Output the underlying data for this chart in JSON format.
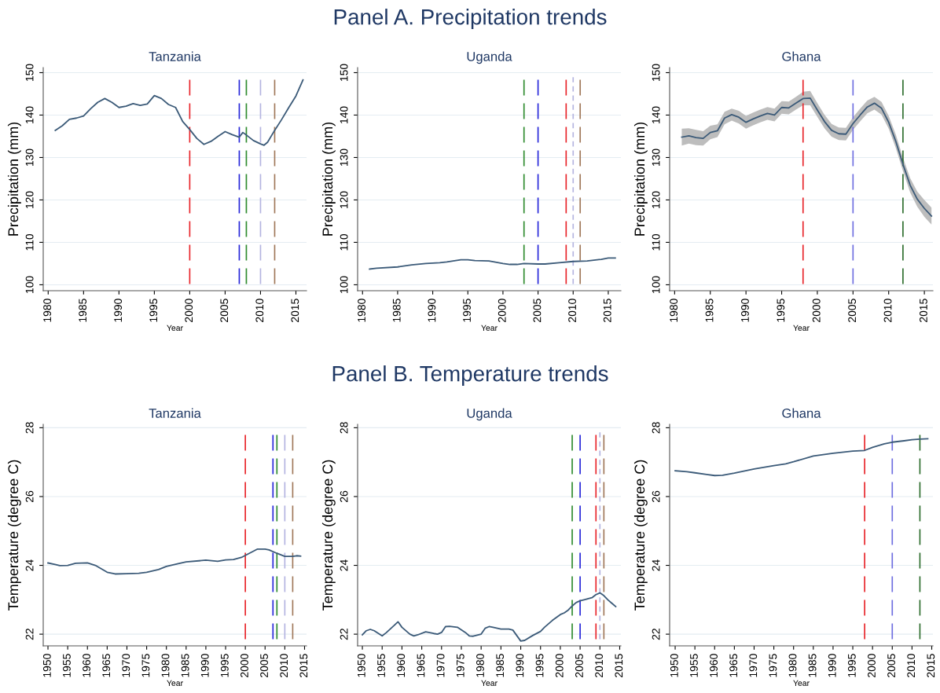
{
  "chart_data": [
    {
      "type": "line",
      "title": "Tanzania",
      "annotations": [
        "Panel A. Precipitation trends"
      ],
      "xlabel": "Year",
      "ylabel": "Precipitation (mm)",
      "xlim": [
        1979.3,
        2016.5
      ],
      "xticks": [
        1980,
        1985,
        1990,
        1995,
        2000,
        2005,
        2010,
        2015
      ],
      "ylim": [
        98.6,
        151.2
      ],
      "yticks": [
        100,
        110,
        120,
        130,
        140,
        150
      ],
      "grid": "y",
      "legend": false,
      "marker": "none",
      "line_style": "solid",
      "series": [
        {
          "color": "#3b5a78",
          "x": [
            1981,
            1982,
            1983,
            1984,
            1985,
            1986,
            1987,
            1988,
            1989,
            1990,
            1991,
            1992,
            1993,
            1994,
            1995,
            1996,
            1997,
            1998,
            1999,
            2000,
            2001,
            2002,
            2003,
            2004,
            2005,
            2006,
            2007,
            2007.5,
            2008,
            2009,
            2010,
            2010.5,
            2011,
            2012,
            2013,
            2014,
            2015,
            2016
          ],
          "values": [
            136.4,
            137.5,
            139,
            139.3,
            139.8,
            141.5,
            143,
            143.9,
            143,
            141.8,
            142.1,
            142.7,
            142.3,
            142.6,
            144.6,
            143.9,
            142.5,
            141.8,
            138.5,
            136.6,
            134.5,
            133.1,
            133.8,
            135,
            136.1,
            135.4,
            134.8,
            135.9,
            135.3,
            134,
            133.2,
            132.9,
            133.6,
            136.4,
            139,
            141.8,
            144.5,
            148.3
          ]
        }
      ],
      "ref_lines": [
        {
          "axis": "x",
          "value": 2000,
          "color": "#e8242a",
          "line_style": "dashed"
        },
        {
          "axis": "x",
          "value": 2007,
          "color": "#2626d9",
          "line_style": "dashed"
        },
        {
          "axis": "x",
          "value": 2008,
          "color": "#2e8b2e",
          "line_style": "dashed"
        },
        {
          "axis": "x",
          "value": 2010,
          "color": "#b4b4e0",
          "line_style": "dashed"
        },
        {
          "axis": "x",
          "value": 2012,
          "color": "#a0785a",
          "line_style": "dashed"
        }
      ]
    },
    {
      "type": "line",
      "title": "Uganda",
      "xlabel": "Year",
      "ylabel": "Precipitation (mm)",
      "xlim": [
        1979.3,
        2016.8
      ],
      "xticks": [
        1980,
        1985,
        1990,
        1995,
        2000,
        2005,
        2010,
        2015
      ],
      "ylim": [
        98.6,
        151.2
      ],
      "yticks": [
        100,
        110,
        120,
        130,
        140,
        150
      ],
      "grid": "y",
      "legend": false,
      "marker": "none",
      "line_style": "solid",
      "series": [
        {
          "color": "#3b5a78",
          "x": [
            1981,
            1982,
            1985,
            1987,
            1989,
            1991,
            1992,
            1994,
            1995,
            1996,
            1998,
            2000,
            2001,
            2002,
            2003,
            2005,
            2006,
            2008,
            2010,
            2012,
            2014,
            2015,
            2016
          ],
          "values": [
            103.7,
            103.9,
            104.2,
            104.7,
            105.0,
            105.2,
            105.4,
            105.9,
            105.9,
            105.7,
            105.6,
            105.0,
            104.8,
            104.8,
            105.0,
            104.9,
            104.9,
            105.2,
            105.5,
            105.6,
            106.0,
            106.3,
            106.3
          ]
        }
      ],
      "ref_lines": [
        {
          "axis": "x",
          "value": 2003,
          "color": "#2e8b2e",
          "line_style": "dashed"
        },
        {
          "axis": "x",
          "value": 2005,
          "color": "#2626d9",
          "line_style": "dashed"
        },
        {
          "axis": "x",
          "value": 2009,
          "color": "#e8242a",
          "line_style": "dashed"
        },
        {
          "axis": "x",
          "value": 2010,
          "color": "#b4b4e0",
          "line_style": "dotted"
        },
        {
          "axis": "x",
          "value": 2011,
          "color": "#a0785a",
          "line_style": "dashed"
        }
      ]
    },
    {
      "type": "line",
      "title": "Ghana",
      "xlabel": "Year",
      "ylabel": "Precipitation (mm)",
      "xlim": [
        1979.3,
        2016.2
      ],
      "xticks": [
        1980,
        1985,
        1990,
        1995,
        2000,
        2005,
        2010,
        2015
      ],
      "ylim": [
        98.6,
        151.2
      ],
      "yticks": [
        100,
        110,
        120,
        130,
        140,
        150
      ],
      "grid": "y",
      "legend": false,
      "marker": "none",
      "line_style": "solid",
      "series": [
        {
          "color": "#3b5a78",
          "x": [
            1981,
            1982,
            1983,
            1984,
            1985,
            1986,
            1987,
            1988,
            1989,
            1990,
            1991,
            1992,
            1993,
            1994,
            1995,
            1996,
            1997,
            1998,
            1999,
            2000,
            2001,
            2002,
            2003,
            2004,
            2005,
            2006,
            2007,
            2008,
            2009,
            2010,
            2011,
            2012,
            2013,
            2014,
            2015,
            2016
          ],
          "values": [
            134.8,
            135.1,
            134.7,
            134.5,
            135.9,
            136.3,
            139.3,
            140.1,
            139.5,
            138.3,
            139.1,
            139.8,
            140.4,
            140,
            141.8,
            141.7,
            142.8,
            143.9,
            144,
            141.2,
            138.5,
            136.4,
            135.6,
            135.5,
            138,
            140,
            141.9,
            142.8,
            141.6,
            138.3,
            133.8,
            128.4,
            123.5,
            120.2,
            118,
            116.2
          ],
          "lower": [
            132.8,
            133.3,
            132.9,
            132.8,
            134.3,
            134.8,
            137.8,
            138.7,
            138.0,
            136.8,
            137.6,
            138.3,
            138.9,
            138.5,
            140.3,
            140.2,
            141.3,
            142.3,
            142.3,
            139.6,
            136.9,
            134.9,
            134.1,
            134.0,
            136.5,
            138.5,
            140.4,
            141.3,
            140.1,
            136.8,
            132.2,
            126.8,
            121.8,
            118.4,
            116.0,
            114.2
          ],
          "upper": [
            136.8,
            136.9,
            136.5,
            136.2,
            137.5,
            137.8,
            140.8,
            141.5,
            141.0,
            139.8,
            140.6,
            141.3,
            141.9,
            141.5,
            143.3,
            143.2,
            144.3,
            145.5,
            145.7,
            142.8,
            140.1,
            137.9,
            137.1,
            137.0,
            139.5,
            141.5,
            143.4,
            144.3,
            143.1,
            139.8,
            135.4,
            130.0,
            125.2,
            122.0,
            120.0,
            118.2
          ]
        }
      ],
      "ref_lines": [
        {
          "axis": "x",
          "value": 1998,
          "color": "#e8242a",
          "line_style": "dashed"
        },
        {
          "axis": "x",
          "value": 2005,
          "color": "#6f6fe0",
          "line_style": "dashed"
        },
        {
          "axis": "x",
          "value": 2012,
          "color": "#2e6e2e",
          "line_style": "dashed"
        }
      ]
    },
    {
      "type": "line",
      "title": "Tanzania",
      "annotations": [
        "Panel B. Temperature trends"
      ],
      "xlabel": "Year",
      "ylabel": "Temperature (degree C)",
      "xlim": [
        1948.8,
        2015.5
      ],
      "xticks": [
        1950,
        1955,
        1960,
        1965,
        1970,
        1975,
        1980,
        1985,
        1990,
        1995,
        2000,
        2005,
        2010,
        2015
      ],
      "ylim": [
        21.66,
        28.1
      ],
      "yticks": [
        22,
        24,
        26,
        28
      ],
      "grid": "y",
      "legend": false,
      "marker": "none",
      "line_style": "solid",
      "series": [
        {
          "color": "#3b5a78",
          "x": [
            1950,
            1952,
            1953,
            1955,
            1957,
            1960,
            1962,
            1965,
            1967,
            1970,
            1973,
            1975,
            1978,
            1980,
            1983,
            1985,
            1990,
            1993,
            1995,
            1997,
            1999,
            2001,
            2003,
            2005,
            2006,
            2008,
            2010,
            2012,
            2013,
            2014
          ],
          "values": [
            24.07,
            24.02,
            23.99,
            24.0,
            24.06,
            24.07,
            24.0,
            23.8,
            23.75,
            23.76,
            23.77,
            23.8,
            23.88,
            23.97,
            24.05,
            24.1,
            24.15,
            24.12,
            24.16,
            24.17,
            24.23,
            24.35,
            24.47,
            24.47,
            24.45,
            24.35,
            24.26,
            24.26,
            24.28,
            24.27
          ]
        }
      ],
      "ref_lines": [
        {
          "axis": "x",
          "value": 2000,
          "color": "#e8242a",
          "line_style": "dashed"
        },
        {
          "axis": "x",
          "value": 2007,
          "color": "#2626d9",
          "line_style": "dashed"
        },
        {
          "axis": "x",
          "value": 2008,
          "color": "#2e8b2e",
          "line_style": "dashed"
        },
        {
          "axis": "x",
          "value": 2010,
          "color": "#b4b4e0",
          "line_style": "dashed"
        },
        {
          "axis": "x",
          "value": 2012,
          "color": "#a0785a",
          "line_style": "dashed"
        }
      ]
    },
    {
      "type": "line",
      "title": "Uganda",
      "xlabel": "Year",
      "ylabel": "Temperature (degree C)",
      "xlim": [
        1948.8,
        2015.3
      ],
      "xticks": [
        1950,
        1955,
        1960,
        1965,
        1970,
        1975,
        1980,
        1985,
        1990,
        1995,
        2000,
        2005,
        2010,
        2015
      ],
      "ylim": [
        21.66,
        28.1
      ],
      "yticks": [
        22,
        24,
        26,
        28
      ],
      "grid": "y",
      "legend": false,
      "marker": "none",
      "line_style": "solid",
      "series": [
        {
          "color": "#3b5a78",
          "x": [
            1950,
            1951,
            1952,
            1953,
            1955,
            1956,
            1958,
            1959,
            1960,
            1962,
            1963,
            1964,
            1966,
            1968,
            1969,
            1970,
            1971,
            1972,
            1974,
            1976,
            1977,
            1978,
            1980,
            1981,
            1982,
            1983,
            1985,
            1987,
            1988,
            1990,
            1991,
            1993,
            1995,
            1996,
            1998,
            2000,
            2001,
            2002,
            2003,
            2004,
            2005,
            2006,
            2008,
            2009,
            2010,
            2011,
            2012,
            2013,
            2014
          ],
          "values": [
            21.98,
            22.1,
            22.14,
            22.1,
            21.95,
            22.04,
            22.25,
            22.36,
            22.2,
            22.0,
            21.95,
            21.98,
            22.07,
            22.02,
            22.0,
            22.05,
            22.22,
            22.23,
            22.2,
            22.05,
            21.95,
            21.94,
            22.0,
            22.17,
            22.22,
            22.2,
            22.15,
            22.15,
            22.12,
            21.8,
            21.82,
            21.96,
            22.08,
            22.2,
            22.4,
            22.57,
            22.62,
            22.7,
            22.82,
            22.92,
            22.97,
            23.0,
            23.06,
            23.15,
            23.2,
            23.12,
            23.0,
            22.9,
            22.8
          ]
        }
      ],
      "ref_lines": [
        {
          "axis": "x",
          "value": 2003,
          "color": "#2e8b2e",
          "line_style": "dashed"
        },
        {
          "axis": "x",
          "value": 2005,
          "color": "#2626d9",
          "line_style": "dashed"
        },
        {
          "axis": "x",
          "value": 2009,
          "color": "#e8242a",
          "line_style": "dashed"
        },
        {
          "axis": "x",
          "value": 2010,
          "color": "#b4b4e0",
          "line_style": "dotted"
        },
        {
          "axis": "x",
          "value": 2011,
          "color": "#a0785a",
          "line_style": "dashed"
        }
      ]
    },
    {
      "type": "line",
      "title": "Ghana",
      "xlabel": "Year",
      "ylabel": "Temperature (degree C)",
      "xlim": [
        1948.6,
        2015.3
      ],
      "xticks": [
        1950,
        1955,
        1960,
        1965,
        1970,
        1975,
        1980,
        1985,
        1990,
        1995,
        2000,
        2005,
        2010,
        2015
      ],
      "ylim": [
        21.66,
        28.1
      ],
      "yticks": [
        22,
        24,
        26,
        28
      ],
      "grid": "y",
      "legend": false,
      "marker": "none",
      "line_style": "solid",
      "series": [
        {
          "color": "#3b5a78",
          "x": [
            1950,
            1953,
            1955,
            1958,
            1960,
            1962,
            1965,
            1970,
            1975,
            1978,
            1980,
            1985,
            1990,
            1995,
            1998,
            2000,
            2003,
            2005,
            2008,
            2010,
            2012,
            2014
          ],
          "values": [
            26.75,
            26.72,
            26.69,
            26.64,
            26.61,
            26.62,
            26.68,
            26.8,
            26.9,
            26.95,
            27.01,
            27.18,
            27.26,
            27.32,
            27.34,
            27.43,
            27.53,
            27.58,
            27.62,
            27.65,
            27.67,
            27.68
          ]
        }
      ],
      "ref_lines": [
        {
          "axis": "x",
          "value": 1998,
          "color": "#e8242a",
          "line_style": "dashed"
        },
        {
          "axis": "x",
          "value": 2005,
          "color": "#6f6fe0",
          "line_style": "dashed"
        },
        {
          "axis": "x",
          "value": 2012,
          "color": "#2e6e2e",
          "line_style": "dashed"
        }
      ]
    }
  ]
}
